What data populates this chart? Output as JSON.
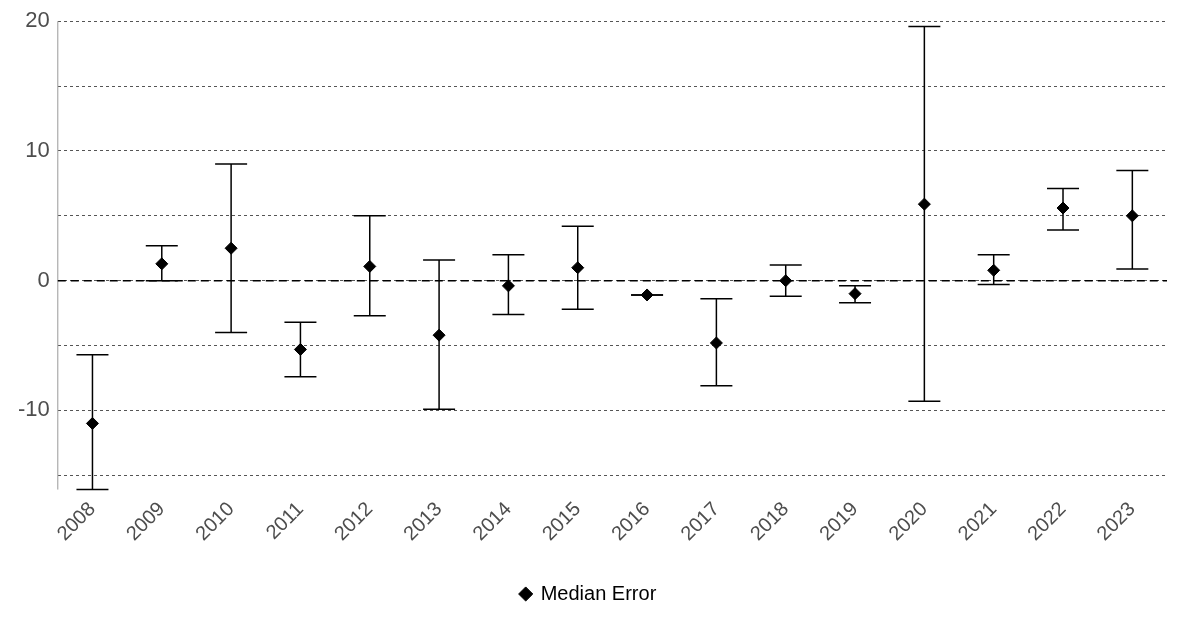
{
  "chart_data": {
    "type": "scatter",
    "categories": [
      "2008",
      "2009",
      "2010",
      "2011",
      "2012",
      "2013",
      "2014",
      "2015",
      "2016",
      "2017",
      "2018",
      "2019",
      "2020",
      "2021",
      "2022",
      "2023"
    ],
    "series": [
      {
        "name": "Median Error",
        "color": "#000000",
        "values": [
          -11.0,
          1.3,
          2.5,
          -5.3,
          1.1,
          -4.2,
          -0.4,
          1.0,
          -1.1,
          -4.8,
          0.0,
          -1.0,
          5.9,
          0.8,
          5.6,
          5.0
        ],
        "errors": [
          [
            -16.1,
            -5.7
          ],
          [
            0,
            2.7
          ],
          [
            -4,
            9.0
          ],
          [
            -7.4,
            -3.2
          ],
          [
            -2.7,
            5.0
          ],
          [
            -9.9,
            1.6
          ],
          [
            -2.6,
            2.0
          ],
          [
            -2.2,
            4.2
          ],
          [
            -1.1,
            -1.1
          ],
          [
            -8.1,
            -1.4
          ],
          [
            -1.2,
            1.2
          ],
          [
            -1.7,
            -0.4
          ],
          [
            -9.3,
            19.6
          ],
          [
            -0.3,
            2.0
          ],
          [
            3.9,
            7.1
          ],
          [
            0.9,
            8.5
          ]
        ]
      }
    ],
    "ylim": [
      -16.1,
      20
    ],
    "yticks": [
      {
        "value": -15,
        "label": null
      },
      -10,
      {
        "value": -5,
        "label": null
      },
      0,
      {
        "value": 5,
        "label": null
      },
      10,
      {
        "value": 15,
        "label": null
      },
      20
    ],
    "ref_lines": [
      {
        "axis": "y",
        "value": 0,
        "line_style": "dashed",
        "color": "#000000"
      }
    ],
    "grid": "y",
    "legend": "bottom",
    "marker": "diamond"
  }
}
